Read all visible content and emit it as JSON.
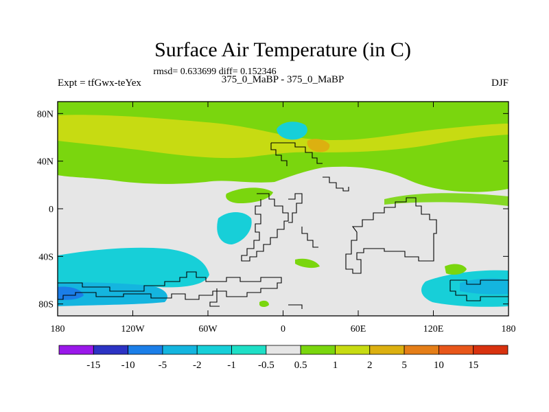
{
  "figure": {
    "title": "Surface Air Temperature (in C)",
    "stats": "rmsd= 0.633699 diff= 0.152346",
    "left_label": "Expt = tfGwx-teYex",
    "center_label": "375_0_MaBP - 375_0_MaBP",
    "right_label": "DJF"
  },
  "chart_data": {
    "type": "heatmap",
    "title": "Surface Air Temperature (in C)",
    "xlabel": "",
    "ylabel": "",
    "x_ticks": [
      "180",
      "120W",
      "60W",
      "0",
      "60E",
      "120E",
      "180"
    ],
    "x_tick_values": [
      -180,
      -120,
      -60,
      0,
      60,
      120,
      180
    ],
    "y_ticks": [
      "80N",
      "40N",
      "0",
      "40S",
      "80S"
    ],
    "y_tick_values": [
      80,
      40,
      0,
      -40,
      -80
    ],
    "xlim": [
      -180,
      180
    ],
    "ylim": [
      -90,
      90
    ],
    "colorbar": {
      "labels": [
        "-15",
        "-10",
        "-5",
        "-2",
        "-1",
        "-0.5",
        "0.5",
        "1",
        "2",
        "5",
        "10",
        "15"
      ],
      "colors": [
        "#9a18ea",
        "#2c33c4",
        "#1b7ee8",
        "#14b5df",
        "#17cfd8",
        "#1edfc6",
        "#e6e6e6",
        "#7ad60e",
        "#c7db12",
        "#dcb010",
        "#e57e18",
        "#e8561a",
        "#d8320f"
      ]
    },
    "regions": [
      {
        "level": "0.5 to 1",
        "color": "#7ad60e",
        "lon": [
          -180,
          180
        ],
        "lat": [
          30,
          85
        ],
        "note": "broad positive anomaly band across northern mid/high latitudes"
      },
      {
        "level": "1 to 2",
        "color": "#c7db12",
        "lon": [
          -180,
          40
        ],
        "lat": [
          45,
          70
        ],
        "note": "embedded warmer band"
      },
      {
        "level": "-2 to -1",
        "color": "#17cfd8",
        "lon": [
          -180,
          -60
        ],
        "lat": [
          -78,
          -55
        ],
        "note": "southern high-latitude cooling"
      },
      {
        "level": "-2 to -1",
        "color": "#17cfd8",
        "lon": [
          110,
          180
        ],
        "lat": [
          -85,
          -60
        ],
        "note": "southern high-latitude cooling"
      },
      {
        "level": "-0.5 to 0.5",
        "color": "#e6e6e6",
        "lon": [
          -180,
          180
        ],
        "lat": [
          -90,
          90
        ],
        "note": "near-zero background"
      }
    ]
  }
}
